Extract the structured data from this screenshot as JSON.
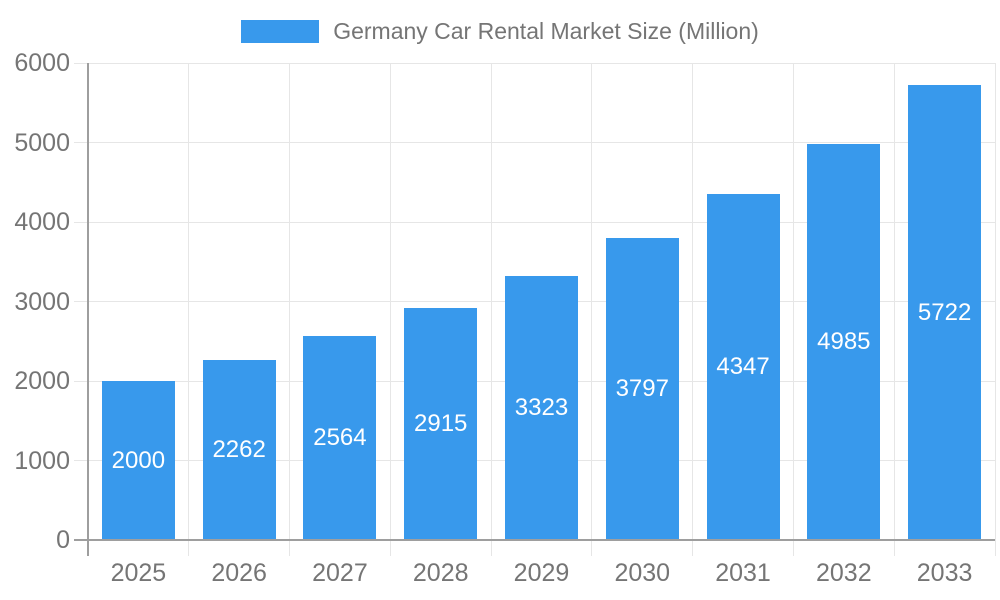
{
  "legend": {
    "label": "Germany Car Rental Market Size (Million)",
    "swatch_color": "#3899EC"
  },
  "chart_data": {
    "type": "bar",
    "title": "Germany Car Rental Market Size (Million)",
    "categories": [
      "2025",
      "2026",
      "2027",
      "2028",
      "2029",
      "2030",
      "2031",
      "2032",
      "2033"
    ],
    "values": [
      2000,
      2262,
      2564,
      2915,
      3323,
      3797,
      4347,
      4985,
      5722
    ],
    "xlabel": "",
    "ylabel": "",
    "ylim": [
      0,
      6000
    ],
    "y_ticks": [
      0,
      1000,
      2000,
      3000,
      4000,
      5000,
      6000
    ],
    "grid": true,
    "legend_position": "top",
    "bar_color": "#3899EC",
    "value_label_color": "#FFFFFF",
    "axis_text_color": "#757575",
    "grid_color": "#E6E6E6",
    "axis_line_color": "#9E9E9E"
  }
}
